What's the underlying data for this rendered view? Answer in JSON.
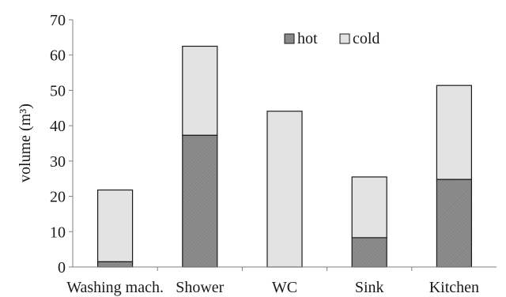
{
  "chart_data": {
    "type": "bar",
    "stacked": true,
    "categories": [
      "Washing mach.",
      "Shower",
      "WC",
      "Sink",
      "Kitchen"
    ],
    "series": [
      {
        "name": "hot",
        "values": [
          1.5,
          37.3,
          0,
          8.3,
          24.8
        ],
        "color": "#8c8c8c",
        "pattern": "hatched"
      },
      {
        "name": "cold",
        "values": [
          20.3,
          25.2,
          44.1,
          17.2,
          26.6
        ],
        "color": "#e3e3e3"
      }
    ],
    "title": "",
    "xlabel": "",
    "ylabel": "volume (m³)",
    "ylim": [
      0,
      70
    ],
    "yticks": [
      0,
      10,
      20,
      30,
      40,
      50,
      60,
      70
    ],
    "grid": false,
    "legend_position": "top-center"
  }
}
